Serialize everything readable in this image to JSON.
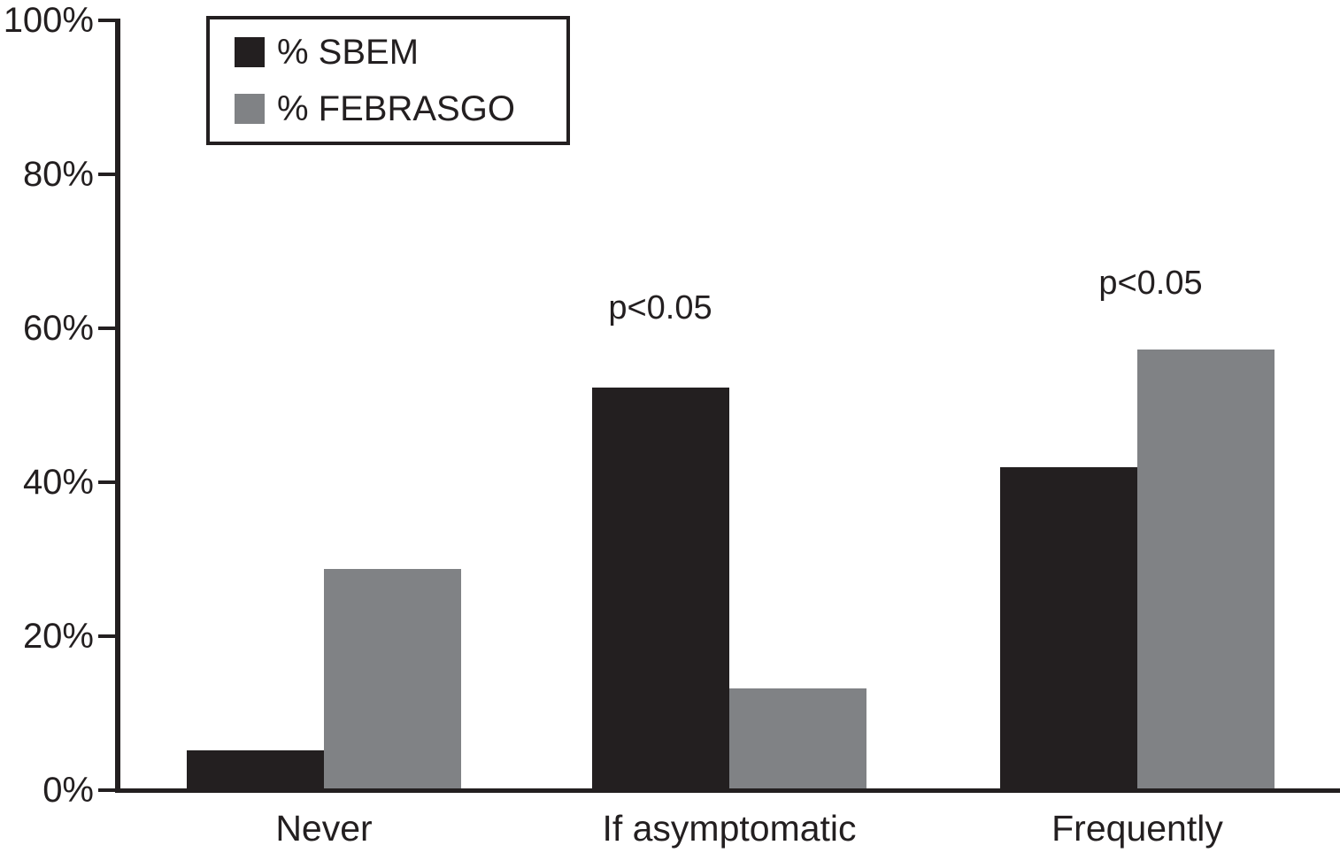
{
  "chart_data": {
    "type": "bar",
    "categories": [
      "Never",
      "If asymptomatic",
      "Frequently"
    ],
    "series": [
      {
        "name": "% SBEM",
        "color": "#231f20",
        "values": [
          5.2,
          52.3,
          42.0
        ]
      },
      {
        "name": "% FEBRASGO",
        "color": "#808285",
        "values": [
          28.7,
          13.2,
          57.2
        ]
      }
    ],
    "title": "",
    "xlabel": "",
    "ylabel": "",
    "ylim": [
      0,
      100
    ],
    "ytick_labels": [
      "0%",
      "20%",
      "40%",
      "60%",
      "80%",
      "100%"
    ],
    "grid": false,
    "legend_position": "top-left",
    "annotations": [
      {
        "text": "p<0.05",
        "category": "If asymptomatic"
      },
      {
        "text": "p<0.05",
        "category": "Frequently"
      }
    ]
  },
  "legend": {
    "items": [
      {
        "label": "% SBEM",
        "color": "#231f20"
      },
      {
        "label": "% FEBRASGO",
        "color": "#808285"
      }
    ]
  },
  "colors": {
    "axis": "#231f20",
    "background": "#ffffff",
    "sbem_bar": "#231f20",
    "febrasgo_bar": "#808285"
  }
}
